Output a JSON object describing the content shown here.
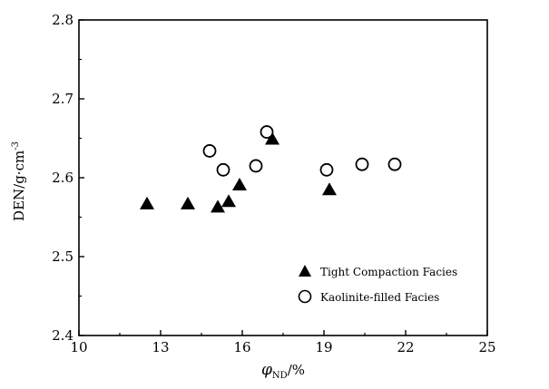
{
  "chart_data": {
    "type": "scatter",
    "xlabel": "φND/%",
    "xlabel_main": "φ",
    "xlabel_sub": "ND",
    "xlabel_unit": "/%",
    "ylabel": "DEN/g·cm-3",
    "ylabel_main": "DEN/g·cm",
    "ylabel_sup": "-3",
    "xlim": [
      10,
      25
    ],
    "ylim": [
      2.4,
      2.8
    ],
    "x_ticks": [
      "10",
      "13",
      "16",
      "19",
      "22",
      "25"
    ],
    "y_ticks": [
      "2.4",
      "2.5",
      "2.6",
      "2.7",
      "2.8"
    ],
    "grid": false,
    "legend_position": "bottom-right",
    "series": [
      {
        "name": "Tight Compaction Facies",
        "marker": "filled-triangle",
        "color": "#000000",
        "points": [
          {
            "x": 12.5,
            "y": 2.566
          },
          {
            "x": 14.0,
            "y": 2.566
          },
          {
            "x": 15.1,
            "y": 2.562
          },
          {
            "x": 15.5,
            "y": 2.569
          },
          {
            "x": 15.9,
            "y": 2.59
          },
          {
            "x": 17.1,
            "y": 2.648
          },
          {
            "x": 19.2,
            "y": 2.584
          }
        ]
      },
      {
        "name": "Kaolinite-filled Facies",
        "marker": "open-circle",
        "color": "#000000",
        "points": [
          {
            "x": 14.8,
            "y": 2.634
          },
          {
            "x": 15.3,
            "y": 2.61
          },
          {
            "x": 16.5,
            "y": 2.615
          },
          {
            "x": 16.9,
            "y": 2.658
          },
          {
            "x": 19.1,
            "y": 2.61
          },
          {
            "x": 20.4,
            "y": 2.617
          },
          {
            "x": 21.6,
            "y": 2.617
          }
        ]
      }
    ]
  }
}
